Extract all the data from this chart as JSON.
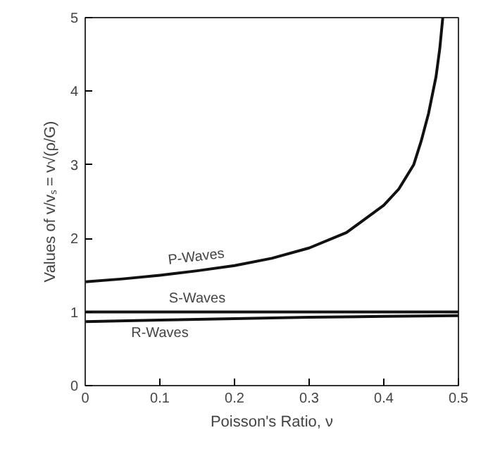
{
  "chart_data": {
    "type": "line",
    "xlabel": "Poisson's Ratio, ν",
    "ylabel": "Values of v/vₛ = v√(ρ/G)",
    "xlim": [
      0,
      0.5
    ],
    "ylim": [
      0,
      5
    ],
    "xticks": [
      0,
      0.1,
      0.2,
      0.3,
      0.4,
      0.5
    ],
    "yticks": [
      0,
      1,
      2,
      3,
      4,
      5
    ],
    "grid": false,
    "marker": "none",
    "line_style": "solid",
    "series": [
      {
        "name": "P-Waves",
        "color": "#111111",
        "x": [
          0,
          0.05,
          0.1,
          0.15,
          0.2,
          0.25,
          0.3,
          0.35,
          0.4,
          0.42,
          0.44,
          0.45,
          0.46,
          0.47,
          0.475,
          0.479
        ],
        "values": [
          1.41,
          1.45,
          1.5,
          1.56,
          1.63,
          1.73,
          1.87,
          2.08,
          2.45,
          2.67,
          3.0,
          3.32,
          3.7,
          4.2,
          4.58,
          5.0
        ]
      },
      {
        "name": "S-Waves",
        "color": "#111111",
        "x": [
          0,
          0.5
        ],
        "values": [
          1.0,
          1.0
        ]
      },
      {
        "name": "R-Waves",
        "color": "#111111",
        "x": [
          0,
          0.1,
          0.2,
          0.3,
          0.4,
          0.5
        ],
        "values": [
          0.87,
          0.89,
          0.91,
          0.93,
          0.94,
          0.95
        ]
      }
    ]
  }
}
